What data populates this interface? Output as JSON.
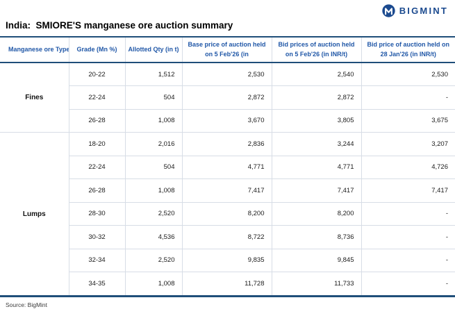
{
  "brand": {
    "name": "BIGMINT",
    "logo_color": "#1b4a8f"
  },
  "title": "India:  SMIORE'S manganese ore auction summary",
  "colors": {
    "navy_rule": "#1f4e79",
    "header_text_blue": "#2057a7",
    "grid_line": "#d7dde6"
  },
  "table": {
    "columns": [
      "Manganese ore Type",
      "Grade (Mn %)",
      "Allotted Qty (in t)",
      "Base price of auction held on 5 Feb'26 (in",
      "Bid prices of auction held on 5 Feb'26 (in INR/t)",
      "Bid price of auction held on 28 Jan'26 (in INR/t)"
    ],
    "groups": [
      {
        "type": "Fines",
        "rows": [
          [
            "20-22",
            "1,512",
            "2,530",
            "2,540",
            "2,530"
          ],
          [
            "22-24",
            "504",
            "2,872",
            "2,872",
            "-"
          ],
          [
            "26-28",
            "1,008",
            "3,670",
            "3,805",
            "3,675"
          ]
        ]
      },
      {
        "type": "Lumps",
        "rows": [
          [
            "18-20",
            "2,016",
            "2,836",
            "3,244",
            "3,207"
          ],
          [
            "22-24",
            "504",
            "4,771",
            "4,771",
            "4,726"
          ],
          [
            "26-28",
            "1,008",
            "7,417",
            "7,417",
            "7,417"
          ],
          [
            "28-30",
            "2,520",
            "8,200",
            "8,200",
            "-"
          ],
          [
            "30-32",
            "4,536",
            "8,722",
            "8,736",
            "-"
          ],
          [
            "32-34",
            "2,520",
            "9,835",
            "9,845",
            "-"
          ],
          [
            "34-35",
            "1,008",
            "11,728",
            "11,733",
            "-"
          ]
        ]
      }
    ]
  },
  "footer": {
    "source": "Source: BigMint"
  }
}
